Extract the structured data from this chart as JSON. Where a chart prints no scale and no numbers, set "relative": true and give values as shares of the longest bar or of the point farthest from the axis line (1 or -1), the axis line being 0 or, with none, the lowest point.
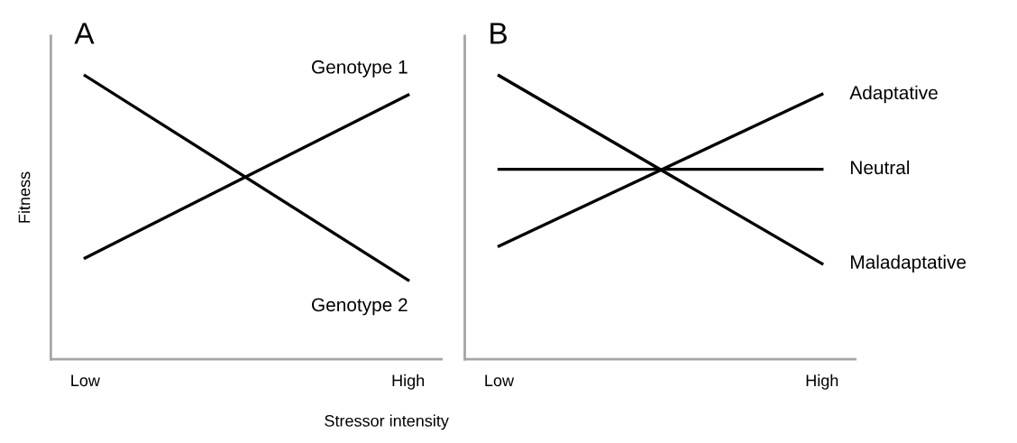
{
  "chart_data": [
    {
      "type": "line",
      "title": "A",
      "ylabel": "Fitness",
      "xlabel": "Stressor intensity",
      "relative": true,
      "categories": [
        "Low",
        "High"
      ],
      "grid": false,
      "legend": false,
      "marker": "none",
      "line_style": "solid",
      "series": [
        {
          "name": "Genotype 1",
          "color": "#000000",
          "values": [
            0.357,
            0.932
          ]
        },
        {
          "name": "Genotype 2",
          "color": "#000000",
          "values": [
            1.0,
            0.279
          ]
        }
      ]
    },
    {
      "type": "line",
      "title": "B",
      "relative": true,
      "categories": [
        "Low",
        "High"
      ],
      "grid": false,
      "legend": false,
      "marker": "none",
      "line_style": "solid",
      "series": [
        {
          "name": "Adaptative",
          "color": "#000000",
          "values": [
            0.399,
            0.934
          ]
        },
        {
          "name": "Neutral",
          "color": "#000000",
          "values": [
            0.67,
            0.67
          ]
        },
        {
          "name": "Maladaptative",
          "color": "#000000",
          "values": [
            1.0,
            0.337
          ]
        }
      ]
    }
  ]
}
